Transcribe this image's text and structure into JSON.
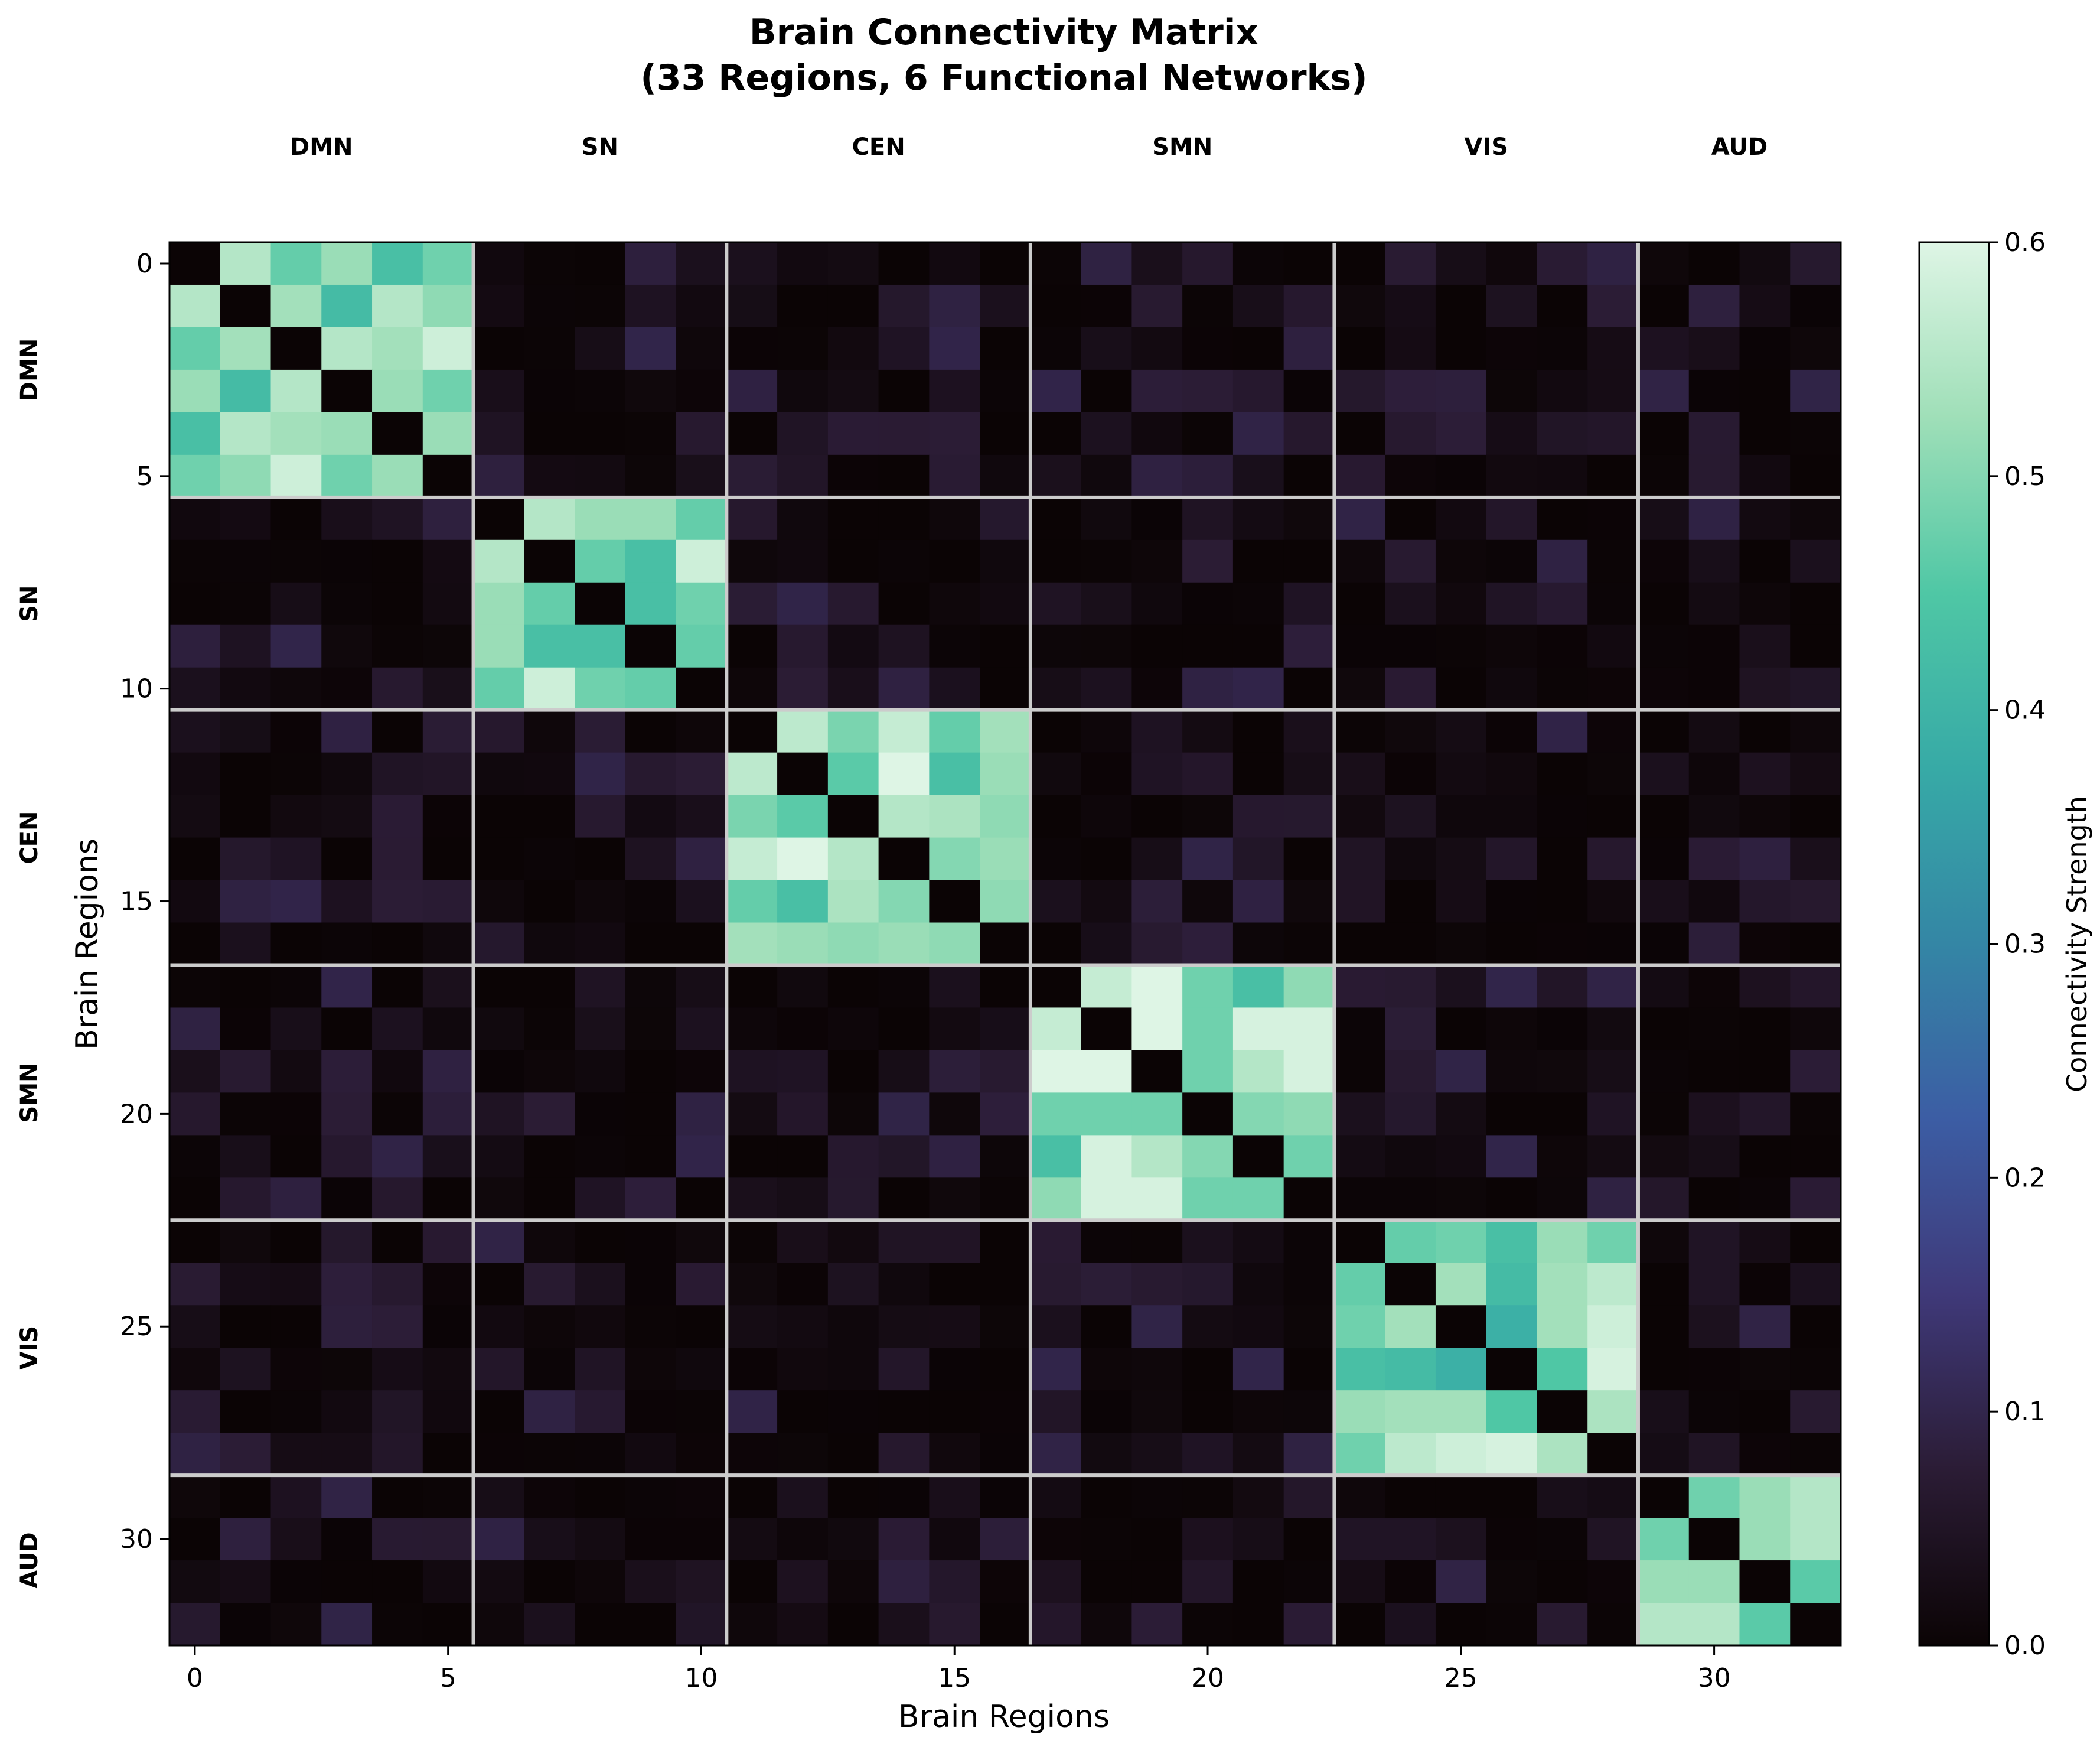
{
  "chart_data": {
    "type": "heatmap",
    "title_line1": "Brain Connectivity Matrix",
    "title_line2": "(33 Regions, 6 Functional Networks)",
    "xlabel": "Brain Regions",
    "ylabel": "Brain Regions",
    "colorbar_label": "Connectivity Strength",
    "colormap": "mako",
    "vmin": 0.0,
    "vmax": 0.6,
    "colorbar_ticks": [
      "0.0",
      "0.1",
      "0.2",
      "0.3",
      "0.4",
      "0.5",
      "0.6"
    ],
    "axis_ticks": [
      "0",
      "5",
      "10",
      "15",
      "20",
      "25",
      "30"
    ],
    "n_regions": 33,
    "networks": [
      {
        "name": "DMN",
        "start": 0,
        "end": 5
      },
      {
        "name": "SN",
        "start": 6,
        "end": 10
      },
      {
        "name": "CEN",
        "start": 11,
        "end": 16
      },
      {
        "name": "SMN",
        "start": 17,
        "end": 22
      },
      {
        "name": "VIS",
        "start": 23,
        "end": 28
      },
      {
        "name": "AUD",
        "start": 29,
        "end": 32
      }
    ],
    "boundary_color": "#cccccc",
    "within_network_blocks": [
      [
        [
          0.0,
          0.55,
          0.47,
          0.52,
          0.43,
          0.48
        ],
        [
          0.55,
          0.0,
          0.53,
          0.42,
          0.55,
          0.51
        ],
        [
          0.47,
          0.53,
          0.0,
          0.55,
          0.53,
          0.58
        ],
        [
          0.52,
          0.42,
          0.55,
          0.0,
          0.52,
          0.48
        ],
        [
          0.43,
          0.55,
          0.53,
          0.52,
          0.0,
          0.52
        ],
        [
          0.48,
          0.51,
          0.58,
          0.48,
          0.52,
          0.0
        ]
      ],
      [
        [
          0.0,
          0.55,
          0.52,
          0.52,
          0.47
        ],
        [
          0.55,
          0.0,
          0.47,
          0.43,
          0.58
        ],
        [
          0.52,
          0.47,
          0.0,
          0.43,
          0.48
        ],
        [
          0.52,
          0.43,
          0.43,
          0.0,
          0.47
        ],
        [
          0.47,
          0.58,
          0.48,
          0.47,
          0.0
        ]
      ],
      [
        [
          0.0,
          0.56,
          0.49,
          0.57,
          0.47,
          0.53
        ],
        [
          0.56,
          0.0,
          0.46,
          0.6,
          0.43,
          0.52
        ],
        [
          0.49,
          0.46,
          0.0,
          0.55,
          0.54,
          0.51
        ],
        [
          0.57,
          0.6,
          0.55,
          0.0,
          0.5,
          0.52
        ],
        [
          0.47,
          0.43,
          0.54,
          0.5,
          0.0,
          0.51
        ],
        [
          0.53,
          0.52,
          0.51,
          0.52,
          0.51,
          0.0
        ]
      ],
      [
        [
          0.0,
          0.57,
          0.6,
          0.48,
          0.43,
          0.51
        ],
        [
          0.57,
          0.0,
          0.6,
          0.48,
          0.59,
          0.59
        ],
        [
          0.6,
          0.6,
          0.0,
          0.48,
          0.55,
          0.59
        ],
        [
          0.48,
          0.48,
          0.48,
          0.0,
          0.5,
          0.51
        ],
        [
          0.43,
          0.59,
          0.55,
          0.5,
          0.0,
          0.48
        ],
        [
          0.51,
          0.59,
          0.59,
          0.48,
          0.48,
          0.0
        ]
      ],
      [
        [
          0.0,
          0.47,
          0.48,
          0.43,
          0.52,
          0.48
        ],
        [
          0.47,
          0.0,
          0.53,
          0.42,
          0.53,
          0.56
        ],
        [
          0.48,
          0.53,
          0.0,
          0.39,
          0.53,
          0.58
        ],
        [
          0.43,
          0.42,
          0.39,
          0.0,
          0.45,
          0.59
        ],
        [
          0.52,
          0.53,
          0.53,
          0.45,
          0.0,
          0.54
        ],
        [
          0.48,
          0.56,
          0.58,
          0.59,
          0.54,
          0.0
        ]
      ],
      [
        [
          0.0,
          0.48,
          0.52,
          0.55
        ],
        [
          0.48,
          0.0,
          0.52,
          0.55
        ],
        [
          0.52,
          0.52,
          0.0,
          0.46
        ],
        [
          0.55,
          0.55,
          0.46,
          0.0
        ]
      ]
    ],
    "between_network_range": [
      0.0,
      0.1
    ]
  }
}
